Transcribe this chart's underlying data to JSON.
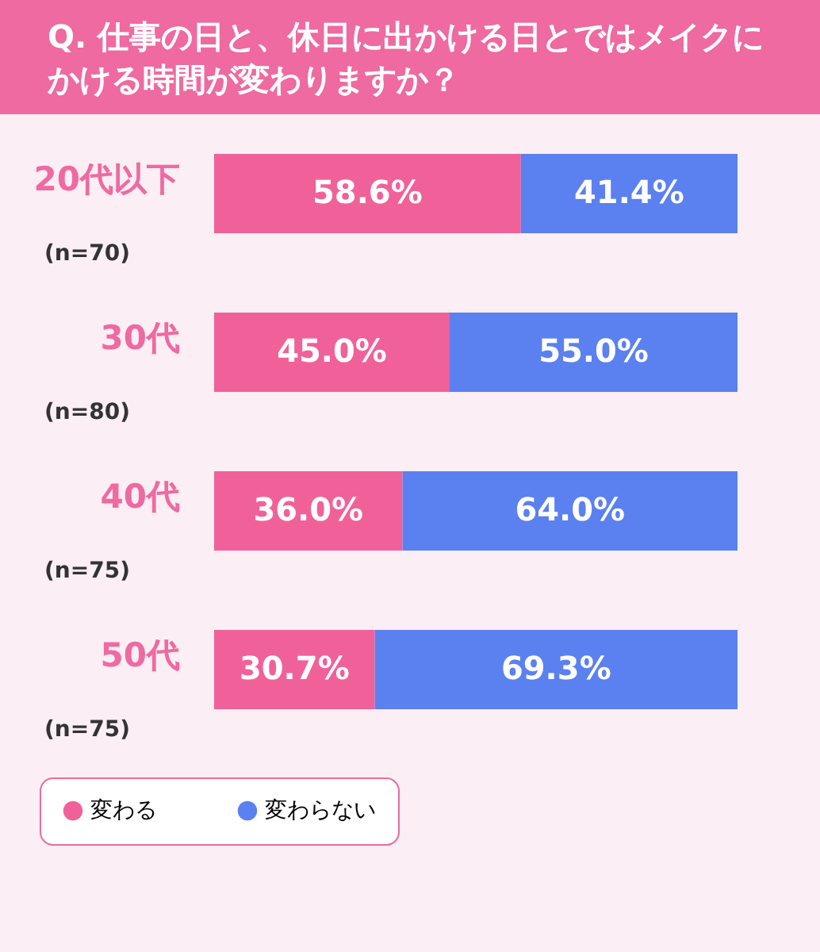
{
  "chart_data": {
    "type": "bar",
    "orientation": "horizontal",
    "stacked": true,
    "title": "Q. 仕事の日と、休日に出かける日とではメイクにかける時間が変わりますか？",
    "categories": [
      "20代以下",
      "30代",
      "40代",
      "50代"
    ],
    "series": [
      {
        "name": "変わる",
        "color": "#f0619a",
        "values": [
          58.6,
          45.0,
          36.0,
          30.7
        ],
        "value_labels": [
          "58.6%",
          "45.0%",
          "36.0%",
          "30.7%"
        ]
      },
      {
        "name": "変わらない",
        "color": "#5b80f0",
        "values": [
          41.4,
          55.0,
          64.0,
          69.3
        ],
        "value_labels": [
          "41.4%",
          "55.0%",
          "64.0%",
          "69.3%"
        ]
      }
    ],
    "annotations": [
      "(n=70)",
      "(n=80)",
      "(n=75)",
      "(n=75)"
    ],
    "xlim": [
      0,
      100
    ],
    "tick_labels": "y",
    "legend": "bottom left"
  }
}
